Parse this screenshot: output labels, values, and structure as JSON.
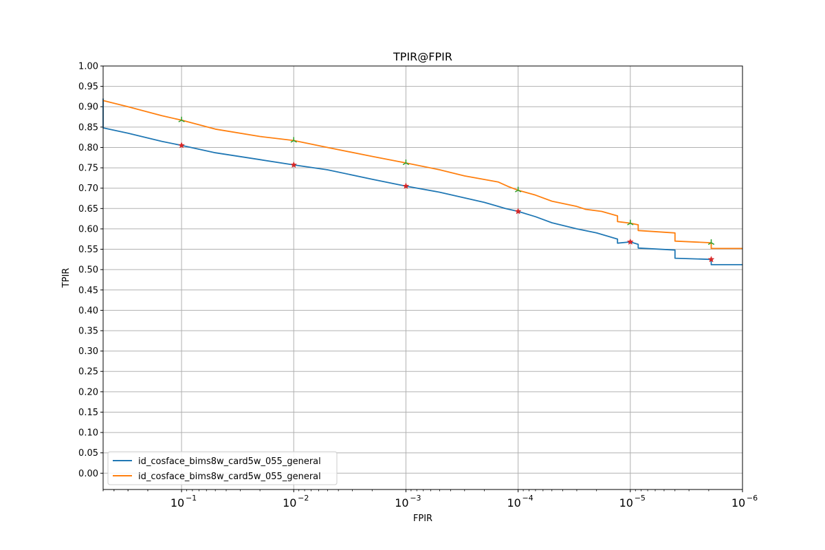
{
  "chart_data": {
    "type": "line",
    "title": "TPIR@FPIR",
    "xlabel": "FPIR",
    "ylabel": "TPIR",
    "x_scale": "log",
    "x_axis_reversed": true,
    "xlim": [
      0.5,
      1e-06
    ],
    "ylim": [
      -0.04,
      1.0
    ],
    "grid": true,
    "legend_position": "lower-left",
    "x_ticks": [
      {
        "base": "10",
        "exp": "−1",
        "value": 0.1
      },
      {
        "base": "10",
        "exp": "−2",
        "value": 0.01
      },
      {
        "base": "10",
        "exp": "−3",
        "value": 0.001
      },
      {
        "base": "10",
        "exp": "−4",
        "value": 0.0001
      },
      {
        "base": "10",
        "exp": "−5",
        "value": 1e-05
      },
      {
        "base": "10",
        "exp": "−6",
        "value": 1e-06
      }
    ],
    "y_ticks": [
      "0.00",
      "0.05",
      "0.10",
      "0.15",
      "0.20",
      "0.25",
      "0.30",
      "0.35",
      "0.40",
      "0.45",
      "0.50",
      "0.55",
      "0.60",
      "0.65",
      "0.70",
      "0.75",
      "0.80",
      "0.85",
      "0.90",
      "0.95",
      "1.00"
    ],
    "series": [
      {
        "name": "id_cosface_bims8w_card5w_055_general",
        "color": "#1f77b4",
        "marker_color": "#d62728",
        "marker": "star",
        "points": [
          [
            0.5,
            0.92
          ],
          [
            0.5,
            0.848
          ],
          [
            0.3,
            0.835
          ],
          [
            0.15,
            0.815
          ],
          [
            0.1,
            0.805
          ],
          [
            0.05,
            0.787
          ],
          [
            0.02,
            0.77
          ],
          [
            0.01,
            0.757
          ],
          [
            0.005,
            0.745
          ],
          [
            0.002,
            0.722
          ],
          [
            0.001,
            0.705
          ],
          [
            0.0005,
            0.69
          ],
          [
            0.0002,
            0.665
          ],
          [
            0.00015,
            0.655
          ],
          [
            0.00013,
            0.65
          ],
          [
            0.0001,
            0.643
          ],
          [
            7e-05,
            0.63
          ],
          [
            5e-05,
            0.615
          ],
          [
            3e-05,
            0.6
          ],
          [
            2e-05,
            0.59
          ],
          [
            1.3e-05,
            0.575
          ],
          [
            1.3e-05,
            0.565
          ],
          [
            1e-05,
            0.568
          ],
          [
            8.5e-06,
            0.562
          ],
          [
            8.5e-06,
            0.553
          ],
          [
            4e-06,
            0.548
          ],
          [
            4e-06,
            0.528
          ],
          [
            1.9e-06,
            0.525
          ],
          [
            1.9e-06,
            0.512
          ],
          [
            1e-06,
            0.512
          ]
        ],
        "markers": [
          [
            0.1,
            0.805
          ],
          [
            0.01,
            0.757
          ],
          [
            0.001,
            0.705
          ],
          [
            0.0001,
            0.643
          ],
          [
            1e-05,
            0.568
          ],
          [
            1.9e-06,
            0.525
          ]
        ]
      },
      {
        "name": "id_cosface_bims8w_card5w_055_general",
        "color": "#ff7f0e",
        "marker_color": "#2ca02c",
        "marker": "tri",
        "points": [
          [
            0.5,
            0.915
          ],
          [
            0.3,
            0.9
          ],
          [
            0.15,
            0.878
          ],
          [
            0.1,
            0.867
          ],
          [
            0.05,
            0.845
          ],
          [
            0.02,
            0.827
          ],
          [
            0.01,
            0.817
          ],
          [
            0.005,
            0.8
          ],
          [
            0.002,
            0.778
          ],
          [
            0.001,
            0.762
          ],
          [
            0.0005,
            0.745
          ],
          [
            0.0003,
            0.73
          ],
          [
            0.00015,
            0.715
          ],
          [
            0.00012,
            0.703
          ],
          [
            0.0001,
            0.695
          ],
          [
            7e-05,
            0.683
          ],
          [
            5e-05,
            0.668
          ],
          [
            3e-05,
            0.655
          ],
          [
            2.5e-05,
            0.648
          ],
          [
            1.8e-05,
            0.643
          ],
          [
            1.3e-05,
            0.632
          ],
          [
            1.3e-05,
            0.618
          ],
          [
            1e-05,
            0.614
          ],
          [
            8.5e-06,
            0.61
          ],
          [
            8.5e-06,
            0.596
          ],
          [
            4e-06,
            0.59
          ],
          [
            4e-06,
            0.57
          ],
          [
            1.9e-06,
            0.566
          ],
          [
            1.9e-06,
            0.552
          ],
          [
            1e-06,
            0.552
          ]
        ],
        "markers": [
          [
            0.1,
            0.867
          ],
          [
            0.01,
            0.817
          ],
          [
            0.001,
            0.762
          ],
          [
            0.0001,
            0.695
          ],
          [
            1e-05,
            0.614
          ],
          [
            1.9e-06,
            0.566
          ]
        ]
      }
    ]
  }
}
